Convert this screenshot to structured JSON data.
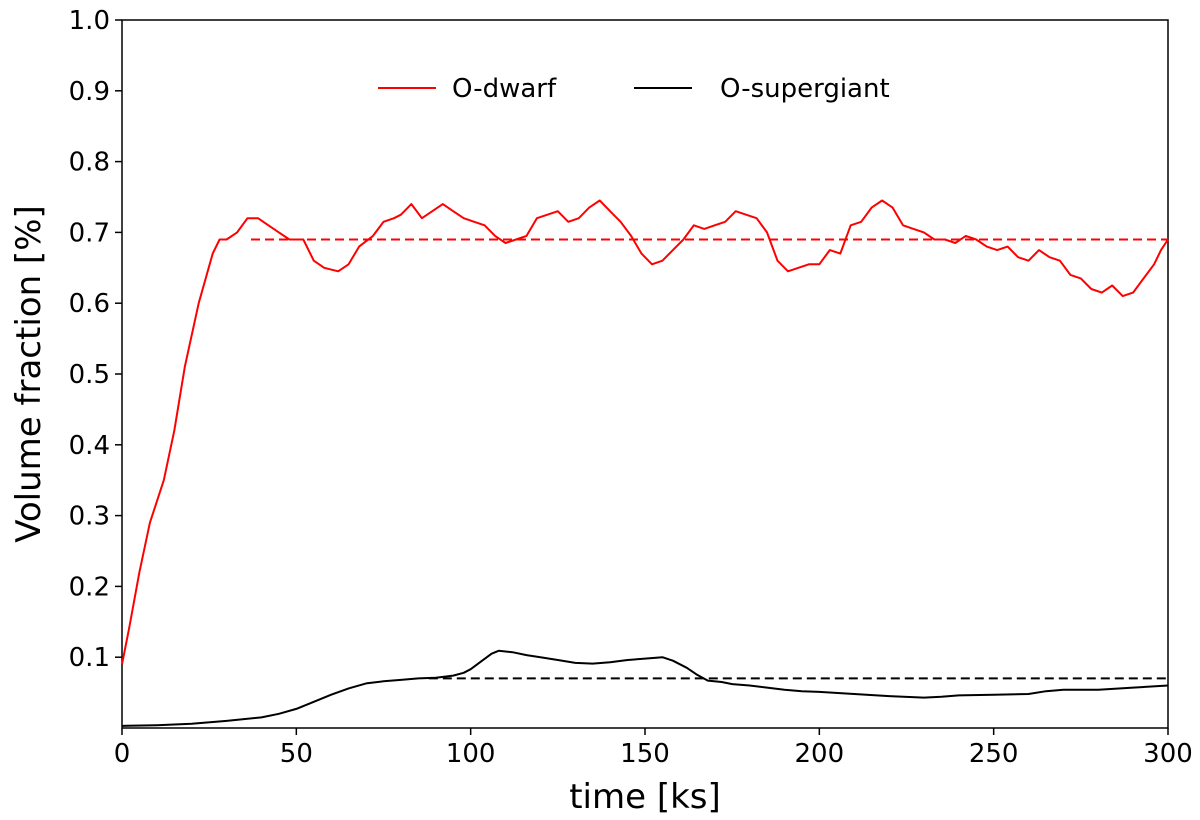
{
  "chart_data": {
    "type": "line",
    "title": "",
    "xlabel": "time [ks]",
    "ylabel": "Volume fraction [%]",
    "xlim": [
      0,
      300
    ],
    "ylim": [
      0,
      1.0
    ],
    "x_ticks": [
      "0",
      "50",
      "100",
      "150",
      "200",
      "250",
      "300"
    ],
    "y_ticks": [
      "0.1",
      "0.2",
      "0.3",
      "0.4",
      "0.5",
      "0.6",
      "0.7",
      "0.8",
      "0.9",
      "1.0"
    ],
    "grid": false,
    "legend_position": "top-center",
    "series": [
      {
        "name": "O-dwarf",
        "color": "#ff0000",
        "style": "solid",
        "x": [
          0,
          2,
          5,
          8,
          12,
          15,
          18,
          22,
          26,
          28,
          30,
          33,
          36,
          39,
          42,
          45,
          48,
          52,
          55,
          58,
          62,
          65,
          68,
          72,
          75,
          78,
          80,
          83,
          86,
          89,
          92,
          95,
          98,
          101,
          104,
          107,
          110,
          113,
          116,
          119,
          122,
          125,
          128,
          131,
          134,
          137,
          140,
          143,
          146,
          149,
          152,
          155,
          158,
          161,
          164,
          167,
          170,
          173,
          176,
          179,
          182,
          185,
          188,
          191,
          194,
          197,
          200,
          203,
          206,
          209,
          212,
          215,
          218,
          221,
          224,
          227,
          230,
          233,
          236,
          239,
          242,
          245,
          248,
          251,
          254,
          257,
          260,
          263,
          266,
          269,
          272,
          275,
          278,
          281,
          284,
          287,
          290,
          293,
          296,
          298,
          300
        ],
        "values": [
          0.09,
          0.14,
          0.22,
          0.29,
          0.35,
          0.42,
          0.51,
          0.6,
          0.67,
          0.69,
          0.69,
          0.7,
          0.72,
          0.72,
          0.71,
          0.7,
          0.69,
          0.69,
          0.66,
          0.65,
          0.645,
          0.655,
          0.68,
          0.695,
          0.715,
          0.72,
          0.725,
          0.74,
          0.72,
          0.73,
          0.74,
          0.73,
          0.72,
          0.715,
          0.71,
          0.695,
          0.685,
          0.69,
          0.695,
          0.72,
          0.725,
          0.73,
          0.715,
          0.72,
          0.735,
          0.745,
          0.73,
          0.715,
          0.695,
          0.67,
          0.655,
          0.66,
          0.675,
          0.69,
          0.71,
          0.705,
          0.71,
          0.715,
          0.73,
          0.725,
          0.72,
          0.7,
          0.66,
          0.645,
          0.65,
          0.655,
          0.655,
          0.675,
          0.67,
          0.71,
          0.715,
          0.735,
          0.745,
          0.735,
          0.71,
          0.705,
          0.7,
          0.69,
          0.69,
          0.685,
          0.695,
          0.69,
          0.68,
          0.675,
          0.68,
          0.665,
          0.66,
          0.675,
          0.665,
          0.66,
          0.64,
          0.635,
          0.62,
          0.615,
          0.625,
          0.61,
          0.615,
          0.635,
          0.655,
          0.675,
          0.69
        ]
      },
      {
        "name": "",
        "color": "#ff0000",
        "style": "dashed",
        "x": [
          37,
          300
        ],
        "values": [
          0.69,
          0.69
        ]
      },
      {
        "name": "O-supergiant",
        "color": "#000000",
        "style": "solid",
        "x": [
          0,
          10,
          20,
          30,
          40,
          45,
          50,
          55,
          60,
          65,
          70,
          75,
          80,
          85,
          90,
          95,
          98,
          100,
          103,
          106,
          108,
          112,
          116,
          120,
          125,
          130,
          135,
          140,
          145,
          150,
          155,
          158,
          162,
          165,
          168,
          172,
          175,
          180,
          185,
          190,
          195,
          200,
          210,
          220,
          230,
          235,
          240,
          250,
          260,
          265,
          270,
          280,
          290,
          300
        ],
        "values": [
          0.003,
          0.004,
          0.006,
          0.01,
          0.015,
          0.02,
          0.027,
          0.037,
          0.047,
          0.056,
          0.063,
          0.066,
          0.068,
          0.07,
          0.071,
          0.074,
          0.078,
          0.083,
          0.094,
          0.105,
          0.109,
          0.107,
          0.103,
          0.1,
          0.096,
          0.092,
          0.091,
          0.093,
          0.096,
          0.098,
          0.1,
          0.095,
          0.085,
          0.075,
          0.067,
          0.065,
          0.062,
          0.06,
          0.057,
          0.054,
          0.052,
          0.051,
          0.048,
          0.045,
          0.043,
          0.044,
          0.046,
          0.047,
          0.048,
          0.052,
          0.054,
          0.054,
          0.057,
          0.06
        ]
      },
      {
        "name": "",
        "color": "#000000",
        "style": "dashed",
        "x": [
          88,
          300
        ],
        "values": [
          0.07,
          0.07
        ]
      }
    ]
  }
}
